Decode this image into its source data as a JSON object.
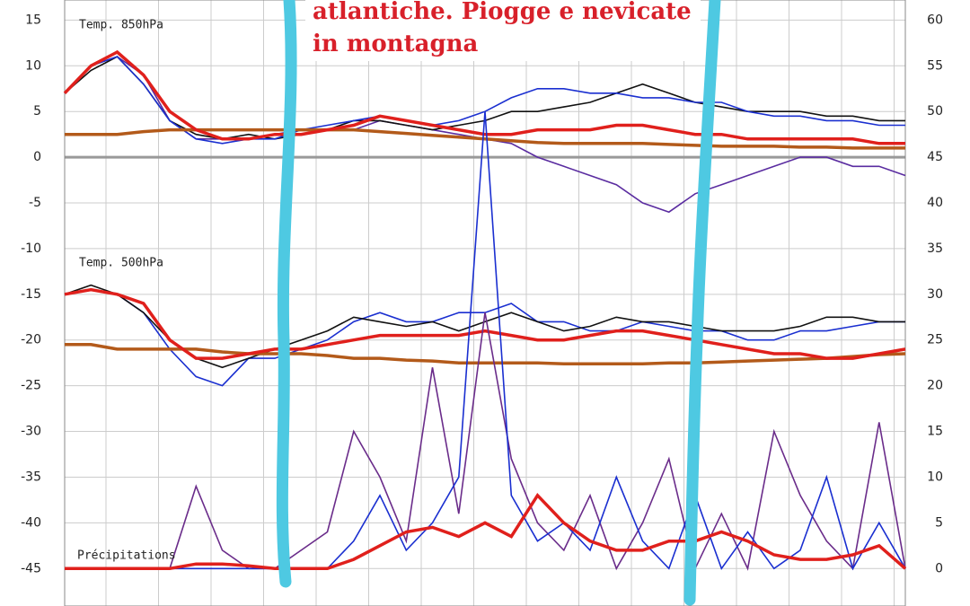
{
  "chart_data": {
    "type": "line",
    "overlay_text": [
      "atlantiche. Piogge e nevicate",
      "in montagna"
    ],
    "annotations": [
      "Temp. 850hPa",
      "Temp. 500hPa",
      "Précipitations"
    ],
    "ylim": [
      -49.1,
      17.2
    ],
    "yticks": [
      -45,
      -40,
      -35,
      -30,
      -25,
      -20,
      -15,
      -10,
      -5,
      0,
      5,
      10,
      15
    ],
    "y2lim": [
      -4.1,
      62.2
    ],
    "y2ticks": [
      0,
      5,
      10,
      15,
      20,
      25,
      30,
      35,
      40,
      45,
      50,
      55,
      60
    ],
    "grid": true,
    "series": [
      {
        "name": "850 purple",
        "color": "#5a2ca0",
        "values": [
          7,
          10,
          11,
          9,
          4,
          2,
          2,
          2,
          2.5,
          3,
          3,
          3,
          4,
          3.5,
          3,
          2.5,
          2,
          1.5,
          0,
          -1,
          -2,
          -3,
          -5,
          -6,
          -4,
          -3,
          -2,
          -1,
          0,
          0,
          -1,
          -1,
          -2
        ]
      },
      {
        "name": "850 black",
        "color": "#111111",
        "values": [
          7,
          9.5,
          11,
          8,
          4,
          2.5,
          2,
          2.5,
          2,
          2.5,
          3,
          4,
          4,
          3.5,
          3,
          3.5,
          4,
          5,
          5,
          5.5,
          6,
          7,
          8,
          7,
          6,
          5.5,
          5,
          5,
          5,
          4.5,
          4.5,
          4,
          4
        ]
      },
      {
        "name": "850 blue",
        "color": "#1a2fd0",
        "values": [
          7,
          10,
          11,
          8,
          4,
          2,
          1.5,
          2,
          2,
          3,
          3.5,
          4,
          4.5,
          4,
          3.5,
          4,
          5,
          6.5,
          7.5,
          7.5,
          7,
          7,
          6.5,
          6.5,
          6,
          6,
          5,
          4.5,
          4.5,
          4,
          4,
          3.5,
          3.5
        ]
      },
      {
        "name": "850 clim",
        "color": "#b35a1a",
        "values": [
          2.5,
          2.5,
          2.5,
          2.8,
          3,
          3,
          3,
          3,
          3,
          3,
          3,
          3,
          2.8,
          2.6,
          2.4,
          2.2,
          2,
          1.8,
          1.6,
          1.5,
          1.5,
          1.5,
          1.5,
          1.4,
          1.3,
          1.2,
          1.2,
          1.2,
          1.1,
          1.1,
          1,
          1,
          1
        ]
      },
      {
        "name": "850 mean",
        "color": "#e0201c",
        "values": [
          7,
          10,
          11.5,
          9,
          5,
          3,
          2,
          2,
          2.5,
          2.5,
          3,
          3.5,
          4.5,
          4,
          3.5,
          3,
          2.5,
          2.5,
          3,
          3,
          3,
          3.5,
          3.5,
          3,
          2.5,
          2.5,
          2,
          2,
          2,
          2,
          2,
          1.5,
          1.5
        ]
      },
      {
        "name": "500 blue",
        "color": "#1a2fd0",
        "values": [
          -15,
          -14.5,
          -15,
          -17,
          -21,
          -24,
          -25,
          -22,
          -22,
          -21,
          -20,
          -18,
          -17,
          -18,
          -18,
          -17,
          -17,
          -16,
          -18,
          -18,
          -19,
          -19,
          -18,
          -18.5,
          -19,
          -19,
          -20,
          -20,
          -19,
          -19,
          -18.5,
          -18,
          -18
        ]
      },
      {
        "name": "500 black",
        "color": "#111111",
        "values": [
          -15,
          -14,
          -15,
          -17,
          -20,
          -22,
          -23,
          -22,
          -21,
          -20,
          -19,
          -17.5,
          -18,
          -18.5,
          -18,
          -19,
          -18,
          -17,
          -18,
          -19,
          -18.5,
          -17.5,
          -18,
          -18,
          -18.5,
          -19,
          -19,
          -19,
          -18.5,
          -17.5,
          -17.5,
          -18,
          -18
        ]
      },
      {
        "name": "500 clim",
        "color": "#b35a1a",
        "values": [
          -20.5,
          -20.5,
          -21,
          -21,
          -21,
          -21,
          -21.3,
          -21.5,
          -21.5,
          -21.5,
          -21.7,
          -22,
          -22,
          -22.2,
          -22.3,
          -22.5,
          -22.5,
          -22.5,
          -22.5,
          -22.6,
          -22.6,
          -22.6,
          -22.6,
          -22.5,
          -22.5,
          -22.4,
          -22.3,
          -22.2,
          -22.1,
          -22,
          -21.8,
          -21.6,
          -21.5
        ]
      },
      {
        "name": "500 mean",
        "color": "#e0201c",
        "values": [
          -15,
          -14.5,
          -15,
          -16,
          -20,
          -22,
          -22,
          -21.5,
          -21,
          -21,
          -20.5,
          -20,
          -19.5,
          -19.5,
          -19.5,
          -19.5,
          -19,
          -19.5,
          -20,
          -20,
          -19.5,
          -19,
          -19,
          -19.5,
          -20,
          -20.5,
          -21,
          -21.5,
          -21.5,
          -22,
          -22,
          -21.5,
          -21
        ]
      },
      {
        "name": "precip purple",
        "color": "#6a2c8a",
        "axis": "y2",
        "values": [
          0,
          0,
          0,
          0,
          0,
          9,
          2,
          0,
          0,
          2,
          4,
          15,
          10,
          3,
          22,
          6,
          28,
          12,
          5,
          2,
          8,
          0,
          5,
          12,
          0,
          6,
          0,
          15,
          8,
          3,
          0,
          16,
          0
        ]
      },
      {
        "name": "precip blue",
        "color": "#1a2fd0",
        "axis": "y2",
        "values": [
          0,
          0,
          0,
          0,
          0,
          0,
          0,
          0,
          0,
          0,
          0,
          3,
          8,
          2,
          5,
          10,
          50,
          8,
          3,
          5,
          2,
          10,
          3,
          0,
          8,
          0,
          4,
          0,
          2,
          10,
          0,
          5,
          0
        ]
      },
      {
        "name": "precip mean",
        "color": "#e0201c",
        "axis": "y2",
        "values": [
          0,
          0,
          0,
          0,
          0,
          0.5,
          0.5,
          0.3,
          0,
          0,
          0,
          1,
          2.5,
          4,
          4.5,
          3.5,
          5,
          3.5,
          8,
          5,
          3,
          2,
          2,
          3,
          3,
          4,
          3,
          1.5,
          1,
          1,
          1.5,
          2.5,
          0
        ]
      }
    ]
  }
}
